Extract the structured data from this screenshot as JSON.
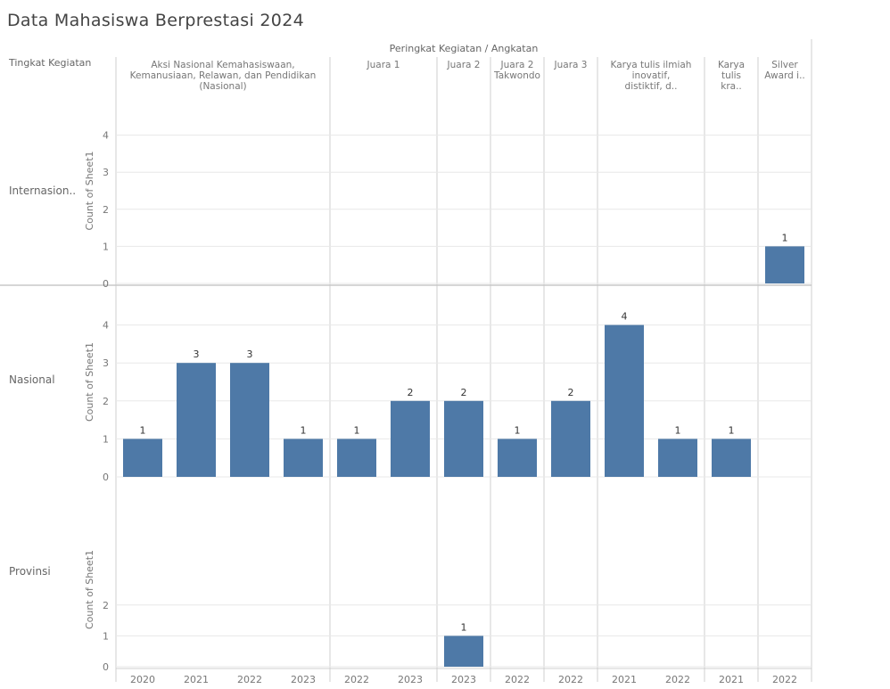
{
  "title": "Data Mahasiswa Berprestasi 2024",
  "header": {
    "row_header_label": "Tingkat Kegiatan",
    "column_header_label": "Peringkat Kegiatan / Angkatan"
  },
  "colors": {
    "bar": "#4e79a7",
    "grid": "#e8e8e8",
    "divider": "#cfcfcf",
    "text": "#555555"
  },
  "chart_data": {
    "type": "bar",
    "measure": "Count of Sheet1",
    "axis_label": "Count of Sheet1",
    "row_dimension": "Tingkat Kegiatan",
    "column_dimension": "Peringkat Kegiatan / Angkatan",
    "groups": [
      {
        "name": "Aksi Nasional Kemahasiswaan, Kemanusiaan, Relawan, dan Pendidikan (Nasional)",
        "years": [
          "2020",
          "2021",
          "2022",
          "2023"
        ]
      },
      {
        "name": "Juara 1",
        "years": [
          "2022",
          "2023"
        ]
      },
      {
        "name": "Juara 2",
        "years": [
          "2023"
        ]
      },
      {
        "name": "Juara 2 Takwondo",
        "years": [
          "2022"
        ]
      },
      {
        "name": "Juara 3",
        "years": [
          "2022"
        ]
      },
      {
        "name": "Karya tulis ilmiah inovatif, distiktif, d..",
        "years": [
          "2021",
          "2022"
        ]
      },
      {
        "name": "Karya tulis kra..",
        "years": [
          "2021"
        ]
      },
      {
        "name": "Silver Award i..",
        "years": [
          "2022"
        ]
      }
    ],
    "rows": [
      {
        "name": "Internasion..",
        "ylim": [
          0,
          5
        ],
        "ticks": [
          0,
          1,
          2,
          3,
          4
        ],
        "values": [
          null,
          null,
          null,
          null,
          null,
          null,
          null,
          null,
          null,
          null,
          null,
          null,
          1
        ]
      },
      {
        "name": "Nasional",
        "ylim": [
          0,
          5
        ],
        "ticks": [
          0,
          1,
          2,
          3,
          4
        ],
        "values": [
          1,
          3,
          3,
          1,
          1,
          2,
          2,
          1,
          2,
          4,
          1,
          1,
          null
        ]
      },
      {
        "name": "Provinsi",
        "ylim": [
          0,
          5
        ],
        "ticks": [
          0,
          1,
          2
        ],
        "values": [
          null,
          null,
          null,
          null,
          null,
          null,
          1,
          null,
          null,
          null,
          null,
          null,
          null
        ]
      }
    ],
    "grid": true
  }
}
